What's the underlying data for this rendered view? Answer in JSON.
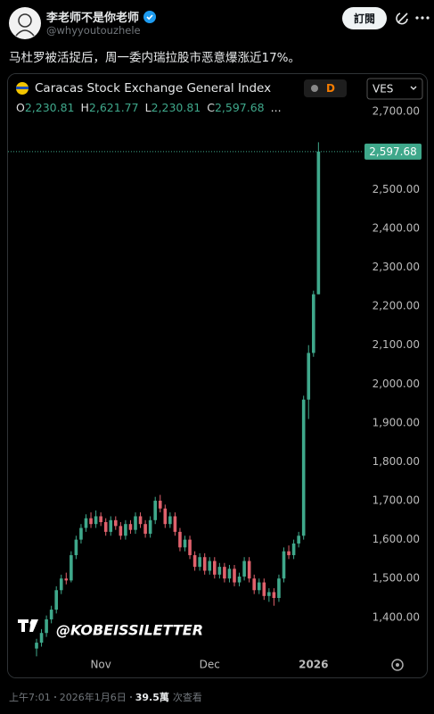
{
  "header": {
    "name": "李老师不是你老师",
    "handle": "@whyyoutouzhele",
    "subscribe": "訂閱"
  },
  "tweet": {
    "text": "马杜罗被活捉后，周一委内瑞拉股市恶意爆涨近17%。"
  },
  "footer": {
    "time": "上午7:01",
    "date": "2026年1月6日",
    "views": "39.5萬",
    "views_label": "次查看"
  },
  "chart_data": {
    "type": "candlestick",
    "title": "Caracas Stock Exchange General Index",
    "interval": "D",
    "currency": "VES",
    "watermark": "@KOBEISSILETTER",
    "ohlc_legend": [
      {
        "key": "O",
        "label": "2,230.81"
      },
      {
        "key": "H",
        "label": "2,621.77"
      },
      {
        "key": "L",
        "label": "2,230.81"
      },
      {
        "key": "C",
        "label": "2,597.68"
      }
    ],
    "ohlc_more": "...",
    "last_price_label": "2,597.68",
    "up_color": "#3fa88b",
    "down_color": "#e0616c",
    "categories": [
      null,
      null,
      null,
      null,
      null,
      null,
      null,
      null,
      null,
      null,
      null,
      null,
      null,
      "Nov",
      null,
      null,
      null,
      null,
      null,
      null,
      null,
      null,
      null,
      null,
      null,
      null,
      null,
      null,
      null,
      null,
      null,
      null,
      null,
      null,
      null,
      "Dec",
      null,
      null,
      null,
      null,
      null,
      null,
      null,
      null,
      null,
      null,
      null,
      null,
      null,
      null,
      null,
      null,
      null,
      null,
      null,
      null,
      "2026",
      null
    ],
    "open": [
      1320,
      1335,
      1360,
      1395,
      1420,
      1470,
      1500,
      1495,
      1560,
      1600,
      1630,
      1655,
      1640,
      1660,
      1645,
      1620,
      1650,
      1635,
      1610,
      1640,
      1625,
      1660,
      1640,
      1615,
      1650,
      1700,
      1680,
      1640,
      1660,
      1620,
      1580,
      1600,
      1560,
      1530,
      1555,
      1520,
      1545,
      1510,
      1530,
      1500,
      1525,
      1490,
      1505,
      1545,
      1500,
      1470,
      1490,
      1455,
      1465,
      1450,
      1500,
      1570,
      1560,
      1590,
      1610,
      1960,
      2080,
      2230.81
    ],
    "high": [
      1345,
      1370,
      1405,
      1430,
      1480,
      1510,
      1515,
      1570,
      1610,
      1640,
      1665,
      1670,
      1675,
      1670,
      1655,
      1660,
      1660,
      1645,
      1650,
      1650,
      1670,
      1670,
      1650,
      1660,
      1710,
      1715,
      1690,
      1670,
      1670,
      1630,
      1610,
      1610,
      1570,
      1565,
      1565,
      1555,
      1555,
      1540,
      1540,
      1535,
      1535,
      1515,
      1555,
      1555,
      1510,
      1500,
      1500,
      1475,
      1475,
      1510,
      1580,
      1585,
      1600,
      1620,
      1970,
      2100,
      2240,
      2621.77
    ],
    "low": [
      1300,
      1325,
      1350,
      1385,
      1410,
      1460,
      1485,
      1490,
      1550,
      1590,
      1620,
      1630,
      1630,
      1635,
      1610,
      1610,
      1625,
      1600,
      1600,
      1615,
      1615,
      1630,
      1605,
      1605,
      1640,
      1670,
      1630,
      1630,
      1610,
      1570,
      1570,
      1550,
      1520,
      1520,
      1510,
      1510,
      1500,
      1500,
      1490,
      1490,
      1480,
      1480,
      1495,
      1490,
      1460,
      1460,
      1445,
      1440,
      1430,
      1440,
      1490,
      1550,
      1550,
      1580,
      1600,
      1910,
      2070,
      2230.81
    ],
    "close": [
      1335,
      1360,
      1395,
      1420,
      1470,
      1500,
      1495,
      1560,
      1600,
      1630,
      1655,
      1640,
      1660,
      1645,
      1620,
      1650,
      1635,
      1610,
      1640,
      1625,
      1660,
      1640,
      1615,
      1650,
      1700,
      1680,
      1640,
      1660,
      1620,
      1580,
      1600,
      1560,
      1530,
      1555,
      1520,
      1545,
      1510,
      1530,
      1500,
      1525,
      1490,
      1505,
      1545,
      1500,
      1470,
      1490,
      1455,
      1465,
      1450,
      1500,
      1570,
      1560,
      1590,
      1610,
      1960,
      2080,
      2230.81,
      2597.68
    ],
    "ylim": [
      1310,
      2790
    ],
    "yticks": [
      {
        "value": 1400,
        "label": "1,400.00"
      },
      {
        "value": 1500,
        "label": "1,500.00"
      },
      {
        "value": 1600,
        "label": "1,600.00"
      },
      {
        "value": 1700,
        "label": "1,700.00"
      },
      {
        "value": 1800,
        "label": "1,800.00"
      },
      {
        "value": 1900,
        "label": "1,900.00"
      },
      {
        "value": 2000,
        "label": "2,000.00"
      },
      {
        "value": 2100,
        "label": "2,100.00"
      },
      {
        "value": 2200,
        "label": "2,200.00"
      },
      {
        "value": 2300,
        "label": "2,300.00"
      },
      {
        "value": 2400,
        "label": "2,400.00"
      },
      {
        "value": 2500,
        "label": "2,500.00"
      },
      {
        "value": 2600,
        "label": "2,600.00"
      },
      {
        "value": 2700,
        "label": "2,700.00"
      }
    ],
    "grid": false
  }
}
